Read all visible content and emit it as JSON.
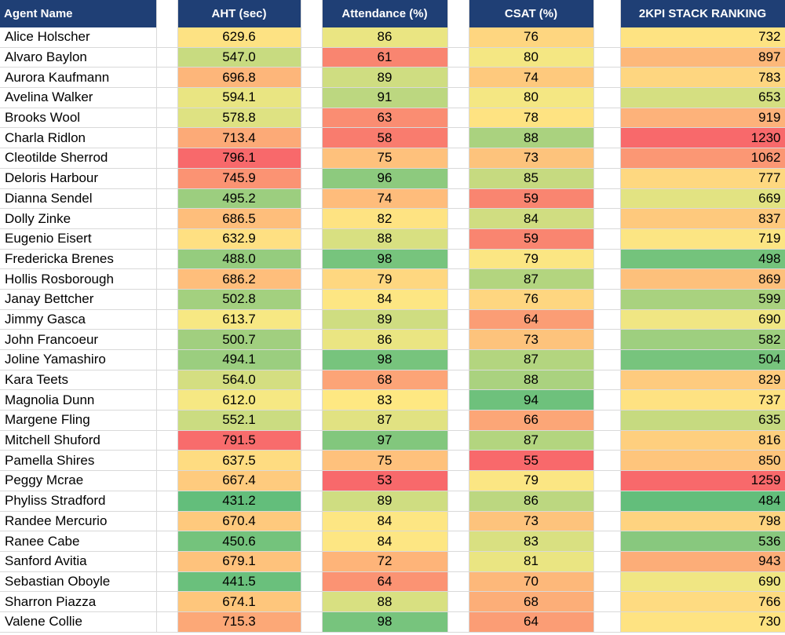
{
  "headers": {
    "agent_name": "Agent Name",
    "aht": "AHT (sec)",
    "attendance": "Attendance (%)",
    "csat": "CSAT (%)",
    "ranking": "2KPI  STACK RANKING"
  },
  "rows": [
    {
      "name": "Alice Holscher",
      "aht": "629.6",
      "aht_color": "#fde283",
      "att": "86",
      "att_color": "#eae582",
      "csat": "76",
      "csat_color": "#fed680",
      "rank": "732",
      "rank_color": "#fee382"
    },
    {
      "name": "Alvaro Baylon",
      "aht": "547.0",
      "aht_color": "#c8db80",
      "att": "61",
      "att_color": "#f98570",
      "csat": "80",
      "csat_color": "#f4e783",
      "rank": "897",
      "rank_color": "#fdb87a"
    },
    {
      "name": "Aurora Kaufmann",
      "aht": "696.8",
      "aht_color": "#fdb67a",
      "att": "89",
      "att_color": "#cfdd81",
      "csat": "74",
      "csat_color": "#fec97d",
      "rank": "783",
      "rank_color": "#fed680"
    },
    {
      "name": "Avelina Walker",
      "aht": "594.1",
      "aht_color": "#e9e582",
      "att": "91",
      "att_color": "#bcd780",
      "csat": "80",
      "csat_color": "#f4e783",
      "rank": "653",
      "rank_color": "#d5df81"
    },
    {
      "name": "Brooks Wool",
      "aht": "578.8",
      "aht_color": "#deE282",
      "att": "63",
      "att_color": "#fa8d72",
      "csat": "78",
      "csat_color": "#fee382",
      "rank": "919",
      "rank_color": "#fdb27a"
    },
    {
      "name": "Charla Ridlon",
      "aht": "713.4",
      "aht_color": "#fcaa77",
      "att": "58",
      "att_color": "#f97c6e",
      "csat": "88",
      "csat_color": "#aad27f",
      "rank": "1230",
      "rank_color": "#f8696b"
    },
    {
      "name": "Cleotilde Sherrod",
      "aht": "796.1",
      "aht_color": "#f8696b",
      "att": "75",
      "att_color": "#fec17c",
      "csat": "73",
      "csat_color": "#fdc37c",
      "rank": "1062",
      "rank_color": "#fb9774"
    },
    {
      "name": "Deloris Harbour",
      "aht": "745.9",
      "aht_color": "#fb9373",
      "att": "96",
      "att_color": "#8dca7e",
      "csat": "85",
      "csat_color": "#c6da80",
      "rank": "777",
      "rank_color": "#fed880"
    },
    {
      "name": "Dianna Sendel",
      "aht": "495.2",
      "aht_color": "#9cce7f",
      "att": "74",
      "att_color": "#febc7b",
      "csat": "59",
      "csat_color": "#f98570",
      "rank": "669",
      "rank_color": "#e2e382"
    },
    {
      "name": "Dolly Zinke",
      "aht": "686.5",
      "aht_color": "#febe7b",
      "att": "82",
      "att_color": "#fee382",
      "csat": "84",
      "csat_color": "#d0dd81",
      "rank": "837",
      "rank_color": "#fec97d"
    },
    {
      "name": "Eugenio Eisert",
      "aht": "632.9",
      "aht_color": "#fee082",
      "att": "88",
      "att_color": "#d8e081",
      "csat": "59",
      "csat_color": "#f98570",
      "rank": "719",
      "rank_color": "#fce583"
    },
    {
      "name": "Fredericka Brenes",
      "aht": "488.0",
      "aht_color": "#95cc7e",
      "att": "98",
      "att_color": "#77c47d",
      "csat": "79",
      "csat_color": "#fbe683",
      "rank": "498",
      "rank_color": "#74c37c"
    },
    {
      "name": "Hollis Rosborough",
      "aht": "686.2",
      "aht_color": "#febe7b",
      "att": "79",
      "att_color": "#fed780",
      "csat": "87",
      "csat_color": "#b3d57f",
      "rank": "869",
      "rank_color": "#fdc07b"
    },
    {
      "name": "Janay Bettcher",
      "aht": "502.8",
      "aht_color": "#a3d07f",
      "att": "84",
      "att_color": "#fde683",
      "csat": "76",
      "csat_color": "#fed680",
      "rank": "599",
      "rank_color": "#a9d27f"
    },
    {
      "name": "Jimmy Gasca",
      "aht": "613.7",
      "aht_color": "#f7e883",
      "att": "89",
      "att_color": "#cfdd81",
      "csat": "64",
      "csat_color": "#fb9d75",
      "rank": "690",
      "rank_color": "#f0e683"
    },
    {
      "name": "John Francoeur",
      "aht": "500.7",
      "aht_color": "#a1cf7f",
      "att": "86",
      "att_color": "#eae582",
      "csat": "73",
      "csat_color": "#fdc37c",
      "rank": "582",
      "rank_color": "#9ecf7f"
    },
    {
      "name": "Joline Yamashiro",
      "aht": "494.1",
      "aht_color": "#9bce7f",
      "att": "98",
      "att_color": "#77c47d",
      "csat": "87",
      "csat_color": "#b3d57f",
      "rank": "504",
      "rank_color": "#77c47d"
    },
    {
      "name": "Kara Teets",
      "aht": "564.0",
      "aht_color": "#d4de81",
      "att": "68",
      "att_color": "#fca477",
      "csat": "88",
      "csat_color": "#aad27f",
      "rank": "829",
      "rank_color": "#fecb7e"
    },
    {
      "name": "Magnolia Dunn",
      "aht": "612.0",
      "aht_color": "#f6e883",
      "att": "83",
      "att_color": "#fee882",
      "csat": "94",
      "csat_color": "#6ec17c",
      "rank": "737",
      "rank_color": "#fee282"
    },
    {
      "name": "Margene Fling",
      "aht": "552.1",
      "aht_color": "#cbdc81",
      "att": "87",
      "att_color": "#e1e282",
      "csat": "66",
      "csat_color": "#fca677",
      "rank": "635",
      "rank_color": "#c6da80"
    },
    {
      "name": "Mitchell Shuford",
      "aht": "791.5",
      "aht_color": "#f86c6c",
      "att": "97",
      "att_color": "#82c77d",
      "csat": "87",
      "csat_color": "#b3d57f",
      "rank": "816",
      "rank_color": "#fecf7e"
    },
    {
      "name": "Pamella Shires",
      "aht": "637.5",
      "aht_color": "#fedc81",
      "att": "75",
      "att_color": "#fec17c",
      "csat": "55",
      "csat_color": "#f8696b",
      "rank": "850",
      "rank_color": "#fec57c"
    },
    {
      "name": "Peggy Mcrae",
      "aht": "667.4",
      "aht_color": "#fecb7e",
      "att": "53",
      "att_color": "#f8696b",
      "csat": "79",
      "csat_color": "#fbe683",
      "rank": "1259",
      "rank_color": "#f8696b"
    },
    {
      "name": "Phyliss Stradford",
      "aht": "431.2",
      "aht_color": "#63be7b",
      "att": "89",
      "att_color": "#cfdd81",
      "csat": "86",
      "csat_color": "#bcd780",
      "rank": "484",
      "rank_color": "#63be7b"
    },
    {
      "name": "Randee Mercurio",
      "aht": "670.4",
      "aht_color": "#fec97d",
      "att": "84",
      "att_color": "#fde683",
      "csat": "73",
      "csat_color": "#fdc37c",
      "rank": "798",
      "rank_color": "#fed380"
    },
    {
      "name": "Ranee Cabe",
      "aht": "450.6",
      "aht_color": "#74c37c",
      "att": "84",
      "att_color": "#fde683",
      "csat": "83",
      "csat_color": "#d9e081",
      "rank": "536",
      "rank_color": "#88c87e"
    },
    {
      "name": "Sanford Avitia",
      "aht": "679.1",
      "aht_color": "#fec27c",
      "att": "72",
      "att_color": "#feb479",
      "csat": "81",
      "csat_color": "#eae582",
      "rank": "943",
      "rank_color": "#fcad78"
    },
    {
      "name": "Sebastian Oboyle",
      "aht": "441.5",
      "aht_color": "#6ac07c",
      "att": "64",
      "att_color": "#fb9373",
      "csat": "70",
      "csat_color": "#fdb87a",
      "rank": "690",
      "rank_color": "#f0e683"
    },
    {
      "name": "Sharron Piazza",
      "aht": "674.1",
      "aht_color": "#fec67c",
      "att": "88",
      "att_color": "#d8e081",
      "csat": "68",
      "csat_color": "#fcae78",
      "rank": "766",
      "rank_color": "#fedb81"
    },
    {
      "name": "Valene Collie",
      "aht": "715.3",
      "aht_color": "#fca877",
      "att": "98",
      "att_color": "#77c47d",
      "csat": "64",
      "csat_color": "#fb9d75",
      "rank": "730",
      "rank_color": "#fee382"
    }
  ]
}
